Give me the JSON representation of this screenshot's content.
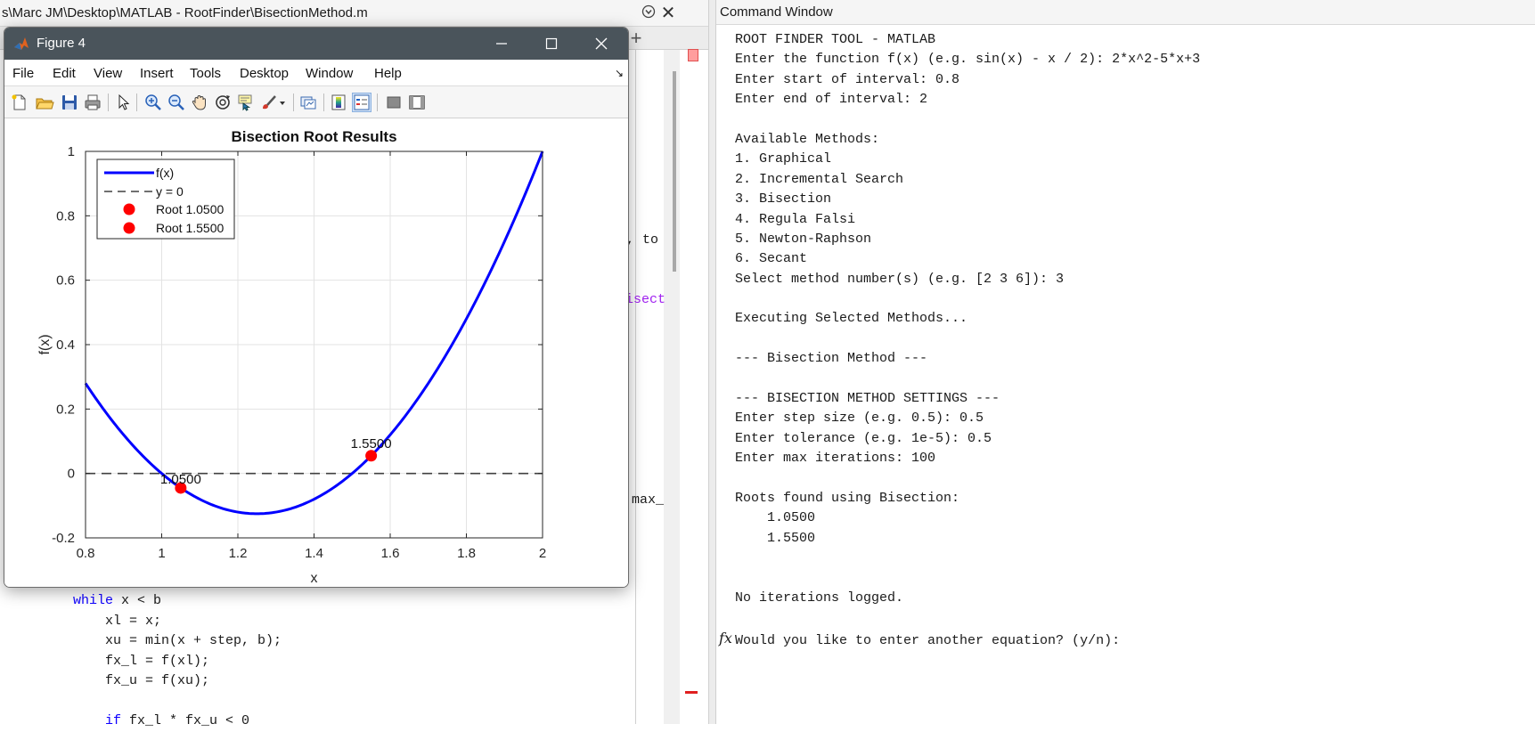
{
  "editor": {
    "path": "s\\Marc JM\\Desktop\\MATLAB - RootFinder\\BisectionMethod.m",
    "fragments": {
      "to": ", to",
      "isect": "isect",
      "max": "max_"
    },
    "code_lines": [
      {
        "keyword": "while",
        "text": " x < b"
      },
      {
        "text": "    xl = x;"
      },
      {
        "text": "    xu = min(x + step, b);"
      },
      {
        "text": "    fx_l = f(xl);"
      },
      {
        "text": "    fx_u = f(xu);"
      },
      {
        "text": ""
      },
      {
        "keyword": "    if",
        "text": " fx_l * fx_u < 0"
      }
    ]
  },
  "command_window": {
    "title": "Command Window",
    "lines": [
      "ROOT FINDER TOOL - MATLAB",
      "Enter the function f(x) (e.g. sin(x) - x / 2): 2*x^2-5*x+3",
      "Enter start of interval: 0.8",
      "Enter end of interval: 2",
      "",
      "Available Methods:",
      "1. Graphical",
      "2. Incremental Search",
      "3. Bisection",
      "4. Regula Falsi",
      "5. Newton-Raphson",
      "6. Secant",
      "Select method number(s) (e.g. [2 3 6]): 3",
      "",
      "Executing Selected Methods...",
      "",
      "--- Bisection Method ---",
      "",
      "--- BISECTION METHOD SETTINGS ---",
      "Enter step size (e.g. 0.5): 0.5",
      "Enter tolerance (e.g. 1e-5): 0.5",
      "Enter max iterations: 100",
      "",
      "Roots found using Bisection:",
      "    1.0500",
      "    1.5500",
      "",
      "",
      "No iterations logged."
    ],
    "prompt": "Would you like to enter another equation? (y/n):",
    "prompt_icon": "fx-icon"
  },
  "figure": {
    "title": "Figure 4",
    "menu": [
      "File",
      "Edit",
      "View",
      "Insert",
      "Tools",
      "Desktop",
      "Window",
      "Help"
    ],
    "toolbar": [
      "new-figure-icon",
      "open-file-icon",
      "save-icon",
      "print-icon",
      "select-pointer-icon",
      "zoom-in-icon",
      "zoom-out-icon",
      "pan-icon",
      "rotate-3d-icon",
      "data-cursor-icon",
      "brush-icon",
      "brush-dropdown-icon",
      "link-plot-icon",
      "colorbar-icon",
      "legend-icon",
      "hide-plot-tools-icon",
      "show-plot-tools-icon"
    ]
  },
  "chart_data": {
    "type": "line",
    "title": "Bisection Root Results",
    "xlabel": "x",
    "ylabel": "f(x)",
    "xlim": [
      0.8,
      2
    ],
    "ylim": [
      -0.2,
      1
    ],
    "xticks": [
      "0.8",
      "1",
      "1.2",
      "1.4",
      "1.6",
      "1.8",
      "2"
    ],
    "yticks": [
      "-0.2",
      "0",
      "0.2",
      "0.4",
      "0.6",
      "0.8",
      "1"
    ],
    "grid": true,
    "legend_position": "top-left",
    "function": {
      "name": "f(x)",
      "coefficients": [
        2,
        -5,
        3
      ],
      "color": "#0000ff"
    },
    "reference_line": {
      "name": "y = 0",
      "y": 0,
      "color": "#404040",
      "style": "dashed"
    },
    "roots": [
      {
        "name": "Root 1.0500",
        "x": 1.05,
        "y": -0.045,
        "label": "1.0500",
        "color": "#ff0000"
      },
      {
        "name": "Root 1.5500",
        "x": 1.55,
        "y": 0.055,
        "label": "1.5500",
        "color": "#ff0000"
      }
    ]
  }
}
